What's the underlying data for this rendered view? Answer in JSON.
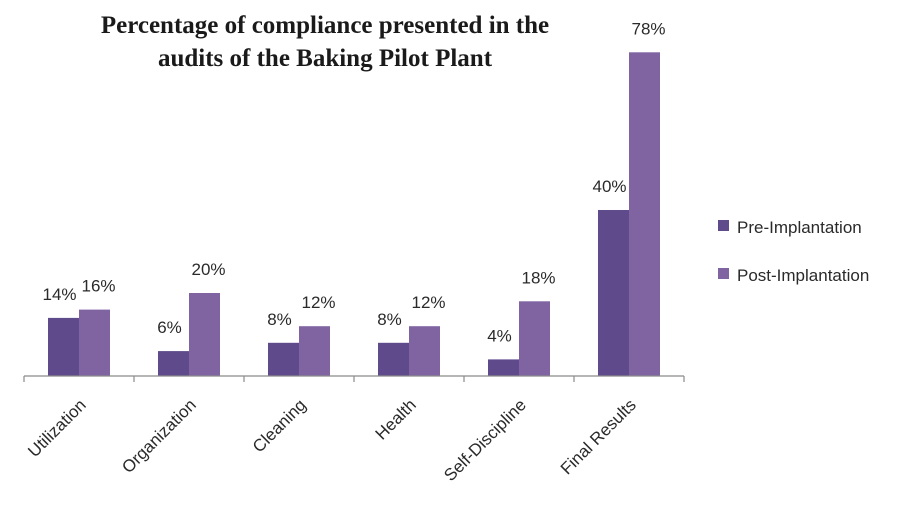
{
  "chart_data": {
    "type": "bar",
    "title_lines": [
      "Percentage of compliance presented in the",
      "audits of the Baking Pilot Plant"
    ],
    "categories": [
      "Utilization",
      "Organization",
      "Cleaning",
      "Health",
      "Self-Discipline",
      "Final Results"
    ],
    "series": [
      {
        "name": "Pre-Implantation",
        "color": "#5f4a8b",
        "values": [
          14,
          6,
          8,
          8,
          4,
          40
        ],
        "labels": [
          "14%",
          "6%",
          "8%",
          "8%",
          "4%",
          "40%"
        ]
      },
      {
        "name": "Post-Implantation",
        "color": "#8064a2",
        "values": [
          16,
          20,
          12,
          12,
          18,
          78
        ],
        "labels": [
          "16%",
          "20%",
          "12%",
          "12%",
          "18%",
          "78%"
        ]
      }
    ],
    "xlabel": "",
    "ylabel": "",
    "ylim": [
      0,
      80
    ],
    "grid": false,
    "legend_position": "right"
  }
}
